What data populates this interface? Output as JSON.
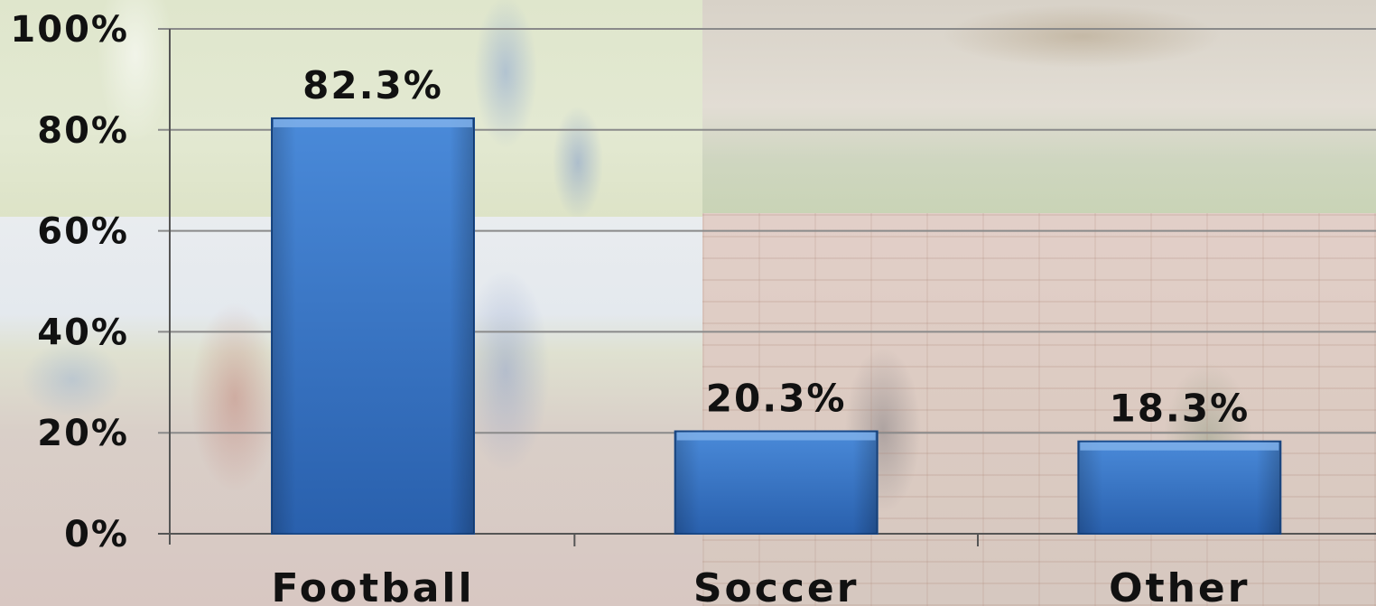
{
  "chart_data": {
    "type": "bar",
    "categories": [
      "Football",
      "Soccer",
      "Other"
    ],
    "values": [
      82.3,
      20.3,
      18.3
    ],
    "data_labels": [
      "82.3%",
      "20.3%",
      "18.3%"
    ],
    "y_ticks": [
      "0%",
      "20%",
      "40%",
      "60%",
      "80%",
      "100%"
    ],
    "ylim": [
      0,
      100
    ],
    "grid": true,
    "title": "",
    "xlabel": "",
    "ylabel": "",
    "bar_color": "#3471c6",
    "bar_edge_color": "#1a4a8a",
    "grid_color": "#8a8a8a"
  }
}
